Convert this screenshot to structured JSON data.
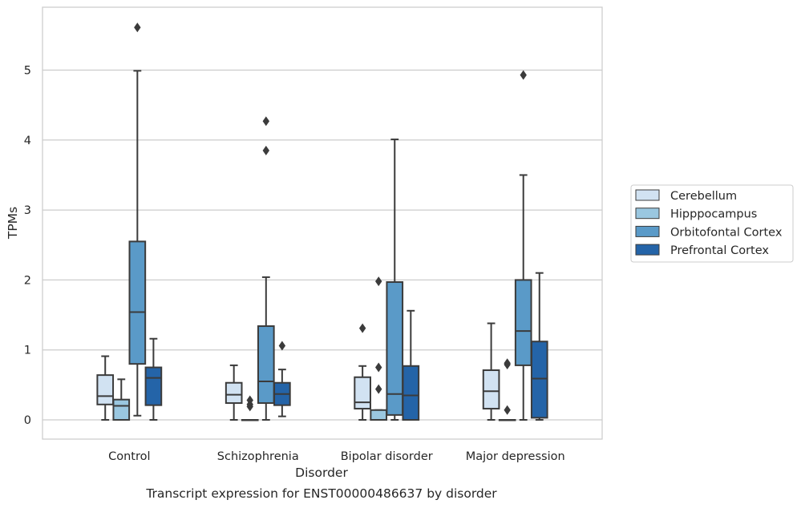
{
  "chart_data": {
    "type": "box",
    "caption": "Transcript expression for ENST00000486637 by disorder",
    "xlabel": "Disorder",
    "ylabel": "TPMs",
    "ylim": [
      -0.27,
      5.9
    ],
    "yticks": [
      0,
      1,
      2,
      3,
      4,
      5
    ],
    "grid": "horizontal",
    "legend_position": "right",
    "categories": [
      "Control",
      "Schizophrenia",
      "Bipolar disorder",
      "Major depression"
    ],
    "series": [
      {
        "name": "Cerebellum",
        "color": "#d1e2f2",
        "boxes": [
          {
            "whisker_low": 0.0,
            "q1": 0.22,
            "median": 0.34,
            "q3": 0.64,
            "whisker_high": 0.91,
            "outliers": []
          },
          {
            "whisker_low": 0.0,
            "q1": 0.24,
            "median": 0.36,
            "q3": 0.53,
            "whisker_high": 0.78,
            "outliers": []
          },
          {
            "whisker_low": 0.0,
            "q1": 0.16,
            "median": 0.25,
            "q3": 0.61,
            "whisker_high": 0.77,
            "outliers": [
              1.31
            ]
          },
          {
            "whisker_low": 0.0,
            "q1": 0.16,
            "median": 0.41,
            "q3": 0.71,
            "whisker_high": 1.38,
            "outliers": []
          }
        ]
      },
      {
        "name": "Hipppocampus",
        "color": "#9ac7e0",
        "boxes": [
          {
            "whisker_low": 0.0,
            "q1": 0.0,
            "median": 0.2,
            "q3": 0.29,
            "whisker_high": 0.58,
            "outliers": []
          },
          {
            "whisker_low": 0.0,
            "q1": 0.0,
            "median": 0.0,
            "q3": 0.0,
            "whisker_high": 0.0,
            "outliers": [
              0.19,
              0.22,
              0.28
            ]
          },
          {
            "whisker_low": 0.0,
            "q1": 0.0,
            "median": 0.0,
            "q3": 0.14,
            "whisker_high": 0.14,
            "outliers": [
              0.44,
              0.75,
              1.98
            ]
          },
          {
            "whisker_low": 0.0,
            "q1": 0.0,
            "median": 0.0,
            "q3": 0.0,
            "whisker_high": 0.0,
            "outliers": [
              0.14,
              0.79,
              0.81
            ]
          }
        ]
      },
      {
        "name": "Orbitofontal Cortex",
        "color": "#5a9ac8",
        "boxes": [
          {
            "whisker_low": 0.06,
            "q1": 0.8,
            "median": 1.54,
            "q3": 2.55,
            "whisker_high": 4.99,
            "outliers": [
              5.61
            ]
          },
          {
            "whisker_low": 0.0,
            "q1": 0.24,
            "median": 0.55,
            "q3": 1.34,
            "whisker_high": 2.04,
            "outliers": [
              3.85,
              4.27
            ]
          },
          {
            "whisker_low": 0.0,
            "q1": 0.07,
            "median": 0.37,
            "q3": 1.97,
            "whisker_high": 4.01,
            "outliers": []
          },
          {
            "whisker_low": 0.0,
            "q1": 0.78,
            "median": 1.27,
            "q3": 2.0,
            "whisker_high": 3.5,
            "outliers": [
              4.93
            ]
          }
        ]
      },
      {
        "name": "Prefrontal Cortex",
        "color": "#2464a8",
        "boxes": [
          {
            "whisker_low": 0.0,
            "q1": 0.21,
            "median": 0.6,
            "q3": 0.75,
            "whisker_high": 1.16,
            "outliers": []
          },
          {
            "whisker_low": 0.05,
            "q1": 0.21,
            "median": 0.37,
            "q3": 0.53,
            "whisker_high": 0.72,
            "outliers": [
              1.06
            ]
          },
          {
            "whisker_low": 0.0,
            "q1": 0.0,
            "median": 0.35,
            "q3": 0.77,
            "whisker_high": 1.56,
            "outliers": []
          },
          {
            "whisker_low": 0.0,
            "q1": 0.03,
            "median": 0.59,
            "q3": 1.12,
            "whisker_high": 2.1,
            "outliers": []
          }
        ]
      }
    ]
  }
}
